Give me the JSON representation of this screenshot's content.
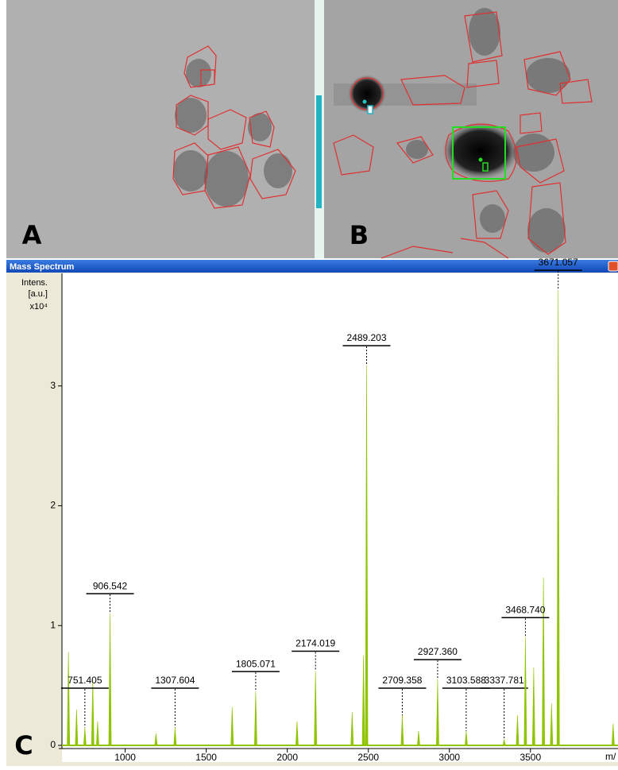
{
  "panel_labels": [
    "A",
    "B",
    "C"
  ],
  "chart_data": {
    "type": "spectrum",
    "title": "Mass Spectrum",
    "y_label": [
      "Intens.",
      "[a.u.]"
    ],
    "y_scale_label": "x10⁴",
    "x_label": "m/",
    "xlim": [
      610,
      4040
    ],
    "ylim": [
      0,
      3.9
    ],
    "xticks": [
      1000,
      1500,
      2000,
      2500,
      3000,
      3500
    ],
    "yticks": [
      0,
      1,
      2,
      3
    ],
    "color": "#8fc400",
    "labeled_peaks": {
      "x": [
        751.405,
        906.542,
        1307.604,
        1805.071,
        2174.019,
        2489.203,
        2709.358,
        {
          "value": 2927.36,
          "label": "2927.360"
        },
        3103.588,
        3337.781,
        {
          "value": 3468.74,
          "label": "3468.740"
        },
        3671.057
      ],
      "values": [
        0.15,
        1.1,
        0.15,
        0.45,
        0.62,
        3.17,
        0.25,
        0.55,
        0.12,
        0.05,
        0.9,
        3.8
      ]
    },
    "peaks": {
      "x": [
        650,
        700,
        800,
        830,
        1190,
        1660,
        2060,
        2400,
        2470,
        2810,
        3420,
        3520,
        3580,
        3630,
        4010
      ],
      "values": [
        0.78,
        0.3,
        0.55,
        0.2,
        0.1,
        0.32,
        0.2,
        0.28,
        0.75,
        0.12,
        0.25,
        0.65,
        1.4,
        0.35,
        0.18
      ]
    }
  }
}
